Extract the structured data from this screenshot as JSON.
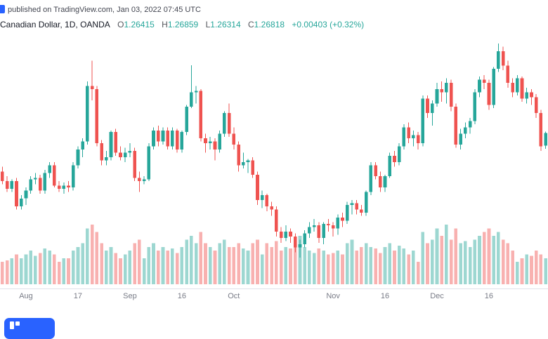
{
  "header": {
    "attribution": "published on TradingView.com, Jan 03, 2022 07:45 UTC",
    "symbol": "Canadian Dollar, 1D, OANDA",
    "ohlc": [
      {
        "label": "O",
        "value": "1.26415"
      },
      {
        "label": "H",
        "value": "1.26859"
      },
      {
        "label": "L",
        "value": "1.26314"
      },
      {
        "label": "C",
        "value": "1.26818"
      }
    ],
    "change": "+0.00403 (+0.32%)"
  },
  "colors": {
    "up": "#26a69a",
    "down": "#ef5350",
    "volume_up": "rgba(38,166,154,0.45)",
    "volume_down": "rgba(239,83,80,0.45)",
    "axis_line": "#e0e3eb",
    "axis_text": "#787b86",
    "symbol_text": "#131722",
    "ohlc_letter": "#54565c",
    "value_up": "#26a69a",
    "attribution_text": "#434651",
    "badge": "#2962ff"
  },
  "chart_data": {
    "type": "candlestick",
    "title": "Canadian Dollar, 1D, OANDA",
    "timeframe": "1D",
    "exchange": "OANDA",
    "grid": "off",
    "volume_overlay": true,
    "price_range": [
      1.2215,
      1.298
    ],
    "last_bar": {
      "open": 1.26415,
      "high": 1.26859,
      "low": 1.26314,
      "close": 1.26818,
      "change": "+0.00403 (+0.32%)"
    },
    "x_labels": [
      {
        "i": 5,
        "t": "Aug"
      },
      {
        "i": 16,
        "t": "17"
      },
      {
        "i": 27,
        "t": "Sep"
      },
      {
        "i": 38,
        "t": "16"
      },
      {
        "i": 49,
        "t": "Oct"
      },
      {
        "i": 70,
        "t": "Nov"
      },
      {
        "i": 81,
        "t": "16"
      },
      {
        "i": 92,
        "t": "Dec"
      },
      {
        "i": 103,
        "t": "16"
      }
    ],
    "candles_format": "[open, high, low, close, volume_rel]",
    "candles": [
      [
        1.256,
        1.2575,
        1.252,
        1.253,
        30
      ],
      [
        1.253,
        1.2545,
        1.2495,
        1.2505,
        32
      ],
      [
        1.2505,
        1.2535,
        1.2495,
        1.253,
        35
      ],
      [
        1.253,
        1.254,
        1.244,
        1.245,
        40
      ],
      [
        1.245,
        1.2485,
        1.244,
        1.2475,
        35
      ],
      [
        1.2475,
        1.251,
        1.2455,
        1.25,
        40
      ],
      [
        1.25,
        1.2545,
        1.249,
        1.2535,
        45
      ],
      [
        1.2535,
        1.2555,
        1.252,
        1.254,
        38
      ],
      [
        1.254,
        1.255,
        1.249,
        1.25,
        42
      ],
      [
        1.25,
        1.2565,
        1.249,
        1.2555,
        48
      ],
      [
        1.2555,
        1.259,
        1.254,
        1.258,
        45
      ],
      [
        1.258,
        1.259,
        1.251,
        1.2515,
        40
      ],
      [
        1.2515,
        1.253,
        1.2495,
        1.2505,
        30
      ],
      [
        1.2505,
        1.2525,
        1.249,
        1.2515,
        35
      ],
      [
        1.2515,
        1.253,
        1.2495,
        1.251,
        35
      ],
      [
        1.251,
        1.259,
        1.25,
        1.258,
        45
      ],
      [
        1.258,
        1.264,
        1.257,
        1.263,
        50
      ],
      [
        1.263,
        1.2665,
        1.2605,
        1.2655,
        55
      ],
      [
        1.2655,
        1.2845,
        1.2645,
        1.283,
        75
      ],
      [
        1.283,
        1.291,
        1.2785,
        1.282,
        80
      ],
      [
        1.282,
        1.283,
        1.264,
        1.265,
        70
      ],
      [
        1.265,
        1.266,
        1.258,
        1.2595,
        55
      ],
      [
        1.2595,
        1.2625,
        1.258,
        1.2605,
        45
      ],
      [
        1.2605,
        1.269,
        1.2595,
        1.2685,
        50
      ],
      [
        1.2685,
        1.2695,
        1.261,
        1.262,
        42
      ],
      [
        1.262,
        1.264,
        1.2595,
        1.2605,
        35
      ],
      [
        1.2605,
        1.2635,
        1.259,
        1.262,
        40
      ],
      [
        1.262,
        1.265,
        1.2605,
        1.2625,
        45
      ],
      [
        1.2625,
        1.2635,
        1.253,
        1.254,
        55
      ],
      [
        1.254,
        1.256,
        1.2495,
        1.253,
        60
      ],
      [
        1.253,
        1.2545,
        1.252,
        1.2535,
        35
      ],
      [
        1.2535,
        1.265,
        1.253,
        1.264,
        50
      ],
      [
        1.264,
        1.27,
        1.263,
        1.269,
        55
      ],
      [
        1.269,
        1.2705,
        1.264,
        1.2655,
        45
      ],
      [
        1.2655,
        1.27,
        1.2645,
        1.269,
        50
      ],
      [
        1.269,
        1.27,
        1.263,
        1.264,
        45
      ],
      [
        1.264,
        1.27,
        1.263,
        1.269,
        48
      ],
      [
        1.269,
        1.2695,
        1.262,
        1.263,
        42
      ],
      [
        1.263,
        1.269,
        1.262,
        1.2685,
        50
      ],
      [
        1.2685,
        1.277,
        1.2675,
        1.2765,
        60
      ],
      [
        1.2765,
        1.2896,
        1.276,
        1.281,
        65
      ],
      [
        1.281,
        1.283,
        1.2775,
        1.2815,
        55
      ],
      [
        1.2815,
        1.282,
        1.2655,
        1.2665,
        70
      ],
      [
        1.2665,
        1.268,
        1.262,
        1.265,
        55
      ],
      [
        1.265,
        1.267,
        1.263,
        1.2655,
        50
      ],
      [
        1.2655,
        1.2665,
        1.2595,
        1.263,
        45
      ],
      [
        1.263,
        1.269,
        1.262,
        1.268,
        55
      ],
      [
        1.268,
        1.275,
        1.267,
        1.2745,
        60
      ],
      [
        1.2745,
        1.2775,
        1.267,
        1.268,
        50
      ],
      [
        1.268,
        1.27,
        1.263,
        1.2645,
        50
      ],
      [
        1.2645,
        1.2655,
        1.256,
        1.258,
        55
      ],
      [
        1.258,
        1.262,
        1.257,
        1.259,
        48
      ],
      [
        1.259,
        1.26,
        1.2555,
        1.2595,
        45
      ],
      [
        1.2595,
        1.2605,
        1.254,
        1.255,
        55
      ],
      [
        1.255,
        1.256,
        1.2455,
        1.247,
        60
      ],
      [
        1.247,
        1.25,
        1.2445,
        1.2485,
        40
      ],
      [
        1.2485,
        1.249,
        1.2435,
        1.245,
        55
      ],
      [
        1.245,
        1.2465,
        1.242,
        1.244,
        50
      ],
      [
        1.244,
        1.245,
        1.2355,
        1.237,
        58
      ],
      [
        1.237,
        1.2385,
        1.2335,
        1.235,
        45
      ],
      [
        1.235,
        1.239,
        1.234,
        1.237,
        50
      ],
      [
        1.237,
        1.238,
        1.2335,
        1.2355,
        48
      ],
      [
        1.2355,
        1.2365,
        1.2305,
        1.232,
        55
      ],
      [
        1.232,
        1.2345,
        1.2288,
        1.233,
        65
      ],
      [
        1.233,
        1.2375,
        1.232,
        1.2365,
        50
      ],
      [
        1.2365,
        1.24,
        1.235,
        1.2385,
        45
      ],
      [
        1.2385,
        1.241,
        1.237,
        1.239,
        42
      ],
      [
        1.239,
        1.24,
        1.2335,
        1.235,
        48
      ],
      [
        1.235,
        1.24,
        1.233,
        1.2395,
        45
      ],
      [
        1.2395,
        1.241,
        1.237,
        1.239,
        40
      ],
      [
        1.239,
        1.24,
        1.2355,
        1.238,
        42
      ],
      [
        1.238,
        1.2425,
        1.236,
        1.2415,
        45
      ],
      [
        1.2415,
        1.243,
        1.2385,
        1.2405,
        40
      ],
      [
        1.2405,
        1.2465,
        1.2395,
        1.2455,
        55
      ],
      [
        1.2455,
        1.247,
        1.2425,
        1.246,
        60
      ],
      [
        1.246,
        1.247,
        1.2425,
        1.244,
        45
      ],
      [
        1.244,
        1.2455,
        1.242,
        1.243,
        50
      ],
      [
        1.243,
        1.25,
        1.242,
        1.2495,
        55
      ],
      [
        1.2495,
        1.259,
        1.2485,
        1.258,
        50
      ],
      [
        1.258,
        1.259,
        1.2535,
        1.2545,
        48
      ],
      [
        1.2545,
        1.256,
        1.2495,
        1.251,
        42
      ],
      [
        1.251,
        1.255,
        1.2495,
        1.2545,
        50
      ],
      [
        1.2545,
        1.262,
        1.254,
        1.261,
        55
      ],
      [
        1.261,
        1.2625,
        1.2575,
        1.259,
        45
      ],
      [
        1.259,
        1.265,
        1.258,
        1.264,
        52
      ],
      [
        1.264,
        1.271,
        1.263,
        1.27,
        48
      ],
      [
        1.27,
        1.2715,
        1.265,
        1.2665,
        40
      ],
      [
        1.2665,
        1.269,
        1.264,
        1.2675,
        45
      ],
      [
        1.2675,
        1.2685,
        1.263,
        1.265,
        30
      ],
      [
        1.265,
        1.28,
        1.264,
        1.279,
        70
      ],
      [
        1.279,
        1.28,
        1.273,
        1.2745,
        55
      ],
      [
        1.2745,
        1.2785,
        1.2705,
        1.2775,
        60
      ],
      [
        1.2775,
        1.284,
        1.2765,
        1.282,
        75
      ],
      [
        1.282,
        1.2845,
        1.278,
        1.281,
        65
      ],
      [
        1.281,
        1.2855,
        1.2775,
        1.284,
        80
      ],
      [
        1.284,
        1.285,
        1.275,
        1.2765,
        60
      ],
      [
        1.2765,
        1.2775,
        1.2635,
        1.2645,
        75
      ],
      [
        1.2645,
        1.2695,
        1.263,
        1.268,
        55
      ],
      [
        1.268,
        1.2715,
        1.2665,
        1.27,
        58
      ],
      [
        1.27,
        1.273,
        1.268,
        1.272,
        50
      ],
      [
        1.272,
        1.282,
        1.271,
        1.281,
        60
      ],
      [
        1.281,
        1.286,
        1.2795,
        1.285,
        65
      ],
      [
        1.285,
        1.2865,
        1.282,
        1.284,
        70
      ],
      [
        1.284,
        1.285,
        1.2755,
        1.277,
        75
      ],
      [
        1.277,
        1.289,
        1.276,
        1.2885,
        65
      ],
      [
        1.2885,
        1.2964,
        1.2875,
        1.294,
        70
      ],
      [
        1.294,
        1.2955,
        1.288,
        1.2895,
        60
      ],
      [
        1.2895,
        1.291,
        1.2825,
        1.284,
        55
      ],
      [
        1.284,
        1.2855,
        1.2795,
        1.281,
        45
      ],
      [
        1.281,
        1.2865,
        1.28,
        1.2855,
        30
      ],
      [
        1.2855,
        1.286,
        1.278,
        1.279,
        35
      ],
      [
        1.279,
        1.2825,
        1.2775,
        1.281,
        40
      ],
      [
        1.281,
        1.282,
        1.277,
        1.2795,
        38
      ],
      [
        1.2795,
        1.2805,
        1.273,
        1.2745,
        45
      ],
      [
        1.2745,
        1.2755,
        1.2625,
        1.264,
        40
      ],
      [
        1.26415,
        1.26859,
        1.26314,
        1.26818,
        35
      ]
    ]
  }
}
